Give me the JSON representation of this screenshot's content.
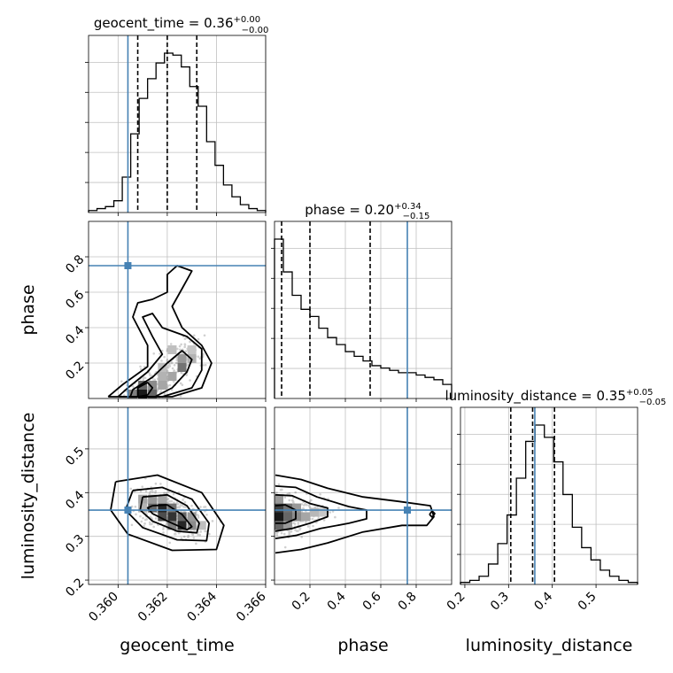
{
  "chart_data": {
    "type": "corner",
    "colors": {
      "truth": "#4682b4",
      "line": "#000000",
      "grid": "#c0c0c0",
      "density": "#000000"
    },
    "parameters": [
      {
        "name": "geocent_time",
        "label": "geocent_time",
        "title_main": "geocent_time = 0.36",
        "title_sup": "+0.00",
        "title_sub": "−0.00",
        "range": [
          0.3588,
          0.366
        ],
        "ticks": [
          0.36,
          0.362,
          0.364,
          0.366
        ],
        "tick_labels": [
          "0.360",
          "0.362",
          "0.364",
          "0.366"
        ],
        "truth": 0.3604,
        "quantiles": [
          0.3608,
          0.362,
          0.3632
        ],
        "hist": [
          1,
          2,
          3,
          6,
          18,
          40,
          58,
          68,
          76,
          81,
          80,
          74,
          64,
          54,
          36,
          24,
          14,
          8,
          4,
          2,
          1
        ]
      },
      {
        "name": "phase",
        "label": "phase",
        "title_main": "phase = 0.20",
        "title_sup": "+0.34",
        "title_sub": "−0.15",
        "range": [
          0.0,
          1.0
        ],
        "ticks": [
          0.2,
          0.4,
          0.6,
          0.8
        ],
        "tick_labels": [
          "0.2",
          "0.4",
          "0.6",
          "0.8"
        ],
        "truth": 0.75,
        "quantiles": [
          0.04,
          0.2,
          0.54
        ],
        "hist": [
          68,
          54,
          44,
          38,
          35,
          30,
          26,
          23,
          20,
          18,
          16,
          14,
          13,
          12,
          11,
          11,
          10,
          9,
          8,
          6
        ]
      },
      {
        "name": "luminosity_distance",
        "label": "luminosity_distance",
        "title_main": "luminosity_distance = 0.35",
        "title_sup": "+0.05",
        "title_sub": "−0.05",
        "range": [
          0.19,
          0.595
        ],
        "ticks": [
          0.2,
          0.3,
          0.4,
          0.5
        ],
        "tick_labels": [
          "0.2",
          "0.3",
          "0.4",
          "0.5"
        ],
        "truth": 0.36,
        "quantiles": [
          0.305,
          0.355,
          0.405
        ],
        "hist": [
          1,
          2,
          4,
          10,
          20,
          34,
          52,
          70,
          78,
          72,
          60,
          44,
          28,
          18,
          12,
          7,
          4,
          2,
          1
        ]
      }
    ],
    "panels": {
      "phase_vs_geocent_time": {
        "ytick_labels": [
          "0.2",
          "0.4",
          "0.6",
          "0.8"
        ],
        "yticks": [
          0.2,
          0.4,
          0.6,
          0.8
        ]
      },
      "luminosity_distance_vs_geocent_time": {
        "ytick_labels": [
          "0.2",
          "0.3",
          "0.4",
          "0.5"
        ],
        "yticks": [
          0.2,
          0.3,
          0.4,
          0.5
        ]
      }
    },
    "hist2d": {
      "phase_vs_geocent_time": [
        {
          "x": 0.361,
          "y": 0.025,
          "d": 0.9
        },
        {
          "x": 0.3614,
          "y": 0.025,
          "d": 0.6
        },
        {
          "x": 0.3606,
          "y": 0.025,
          "d": 0.5
        },
        {
          "x": 0.361,
          "y": 0.075,
          "d": 0.6
        },
        {
          "x": 0.3614,
          "y": 0.075,
          "d": 0.45
        },
        {
          "x": 0.3618,
          "y": 0.075,
          "d": 0.35
        },
        {
          "x": 0.3618,
          "y": 0.125,
          "d": 0.3
        },
        {
          "x": 0.3622,
          "y": 0.125,
          "d": 0.35
        },
        {
          "x": 0.3626,
          "y": 0.175,
          "d": 0.55
        },
        {
          "x": 0.3626,
          "y": 0.225,
          "d": 0.4
        },
        {
          "x": 0.363,
          "y": 0.225,
          "d": 0.3
        },
        {
          "x": 0.3622,
          "y": 0.275,
          "d": 0.25
        },
        {
          "x": 0.363,
          "y": 0.275,
          "d": 0.22
        },
        {
          "x": 0.3618,
          "y": 0.175,
          "d": 0.25
        }
      ],
      "luminosity_distance_vs_geocent_time": [
        {
          "x": 0.3614,
          "y": 0.365,
          "d": 0.6
        },
        {
          "x": 0.3618,
          "y": 0.365,
          "d": 0.85
        },
        {
          "x": 0.3622,
          "y": 0.365,
          "d": 0.55
        },
        {
          "x": 0.3618,
          "y": 0.345,
          "d": 0.7
        },
        {
          "x": 0.3622,
          "y": 0.345,
          "d": 0.8
        },
        {
          "x": 0.3626,
          "y": 0.345,
          "d": 0.6
        },
        {
          "x": 0.3626,
          "y": 0.325,
          "d": 0.85
        },
        {
          "x": 0.363,
          "y": 0.325,
          "d": 0.45
        },
        {
          "x": 0.361,
          "y": 0.385,
          "d": 0.35
        },
        {
          "x": 0.3614,
          "y": 0.385,
          "d": 0.4
        },
        {
          "x": 0.3618,
          "y": 0.385,
          "d": 0.35
        },
        {
          "x": 0.363,
          "y": 0.345,
          "d": 0.4
        },
        {
          "x": 0.361,
          "y": 0.365,
          "d": 0.3
        },
        {
          "x": 0.3622,
          "y": 0.325,
          "d": 0.5
        },
        {
          "x": 0.3634,
          "y": 0.325,
          "d": 0.25
        }
      ],
      "luminosity_distance_vs_phase": [
        {
          "x": 0.025,
          "y": 0.345,
          "d": 0.9
        },
        {
          "x": 0.025,
          "y": 0.365,
          "d": 0.75
        },
        {
          "x": 0.025,
          "y": 0.325,
          "d": 0.6
        },
        {
          "x": 0.075,
          "y": 0.345,
          "d": 0.6
        },
        {
          "x": 0.075,
          "y": 0.365,
          "d": 0.55
        },
        {
          "x": 0.125,
          "y": 0.345,
          "d": 0.45
        },
        {
          "x": 0.125,
          "y": 0.365,
          "d": 0.4
        },
        {
          "x": 0.175,
          "y": 0.345,
          "d": 0.35
        },
        {
          "x": 0.225,
          "y": 0.355,
          "d": 0.28
        },
        {
          "x": 0.275,
          "y": 0.355,
          "d": 0.22
        },
        {
          "x": 0.075,
          "y": 0.325,
          "d": 0.4
        },
        {
          "x": 0.025,
          "y": 0.385,
          "d": 0.4
        }
      ]
    },
    "contours": {
      "phase_vs_geocent_time": [
        [
          [
            0.3608,
            0.01
          ],
          [
            0.3612,
            0.02
          ],
          [
            0.3614,
            0.06
          ],
          [
            0.3612,
            0.09
          ],
          [
            0.3608,
            0.06
          ],
          [
            0.3608,
            0.01
          ]
        ],
        [
          [
            0.3605,
            0.01
          ],
          [
            0.3615,
            0.01
          ],
          [
            0.3622,
            0.06
          ],
          [
            0.3628,
            0.15
          ],
          [
            0.363,
            0.22
          ],
          [
            0.3626,
            0.27
          ],
          [
            0.362,
            0.2
          ],
          [
            0.3614,
            0.12
          ],
          [
            0.3606,
            0.05
          ],
          [
            0.3605,
            0.01
          ]
        ],
        [
          [
            0.36,
            0.01
          ],
          [
            0.3618,
            0.01
          ],
          [
            0.363,
            0.06
          ],
          [
            0.3634,
            0.16
          ],
          [
            0.3634,
            0.28
          ],
          [
            0.3628,
            0.35
          ],
          [
            0.3618,
            0.4
          ],
          [
            0.3614,
            0.48
          ],
          [
            0.361,
            0.46
          ],
          [
            0.3614,
            0.35
          ],
          [
            0.3618,
            0.25
          ],
          [
            0.3612,
            0.15
          ],
          [
            0.3604,
            0.06
          ],
          [
            0.36,
            0.01
          ]
        ],
        [
          [
            0.3596,
            0.01
          ],
          [
            0.3622,
            0.01
          ],
          [
            0.3634,
            0.06
          ],
          [
            0.3638,
            0.2
          ],
          [
            0.3634,
            0.3
          ],
          [
            0.3626,
            0.4
          ],
          [
            0.3622,
            0.52
          ],
          [
            0.3626,
            0.62
          ],
          [
            0.363,
            0.72
          ],
          [
            0.3624,
            0.75
          ],
          [
            0.362,
            0.7
          ],
          [
            0.362,
            0.6
          ],
          [
            0.3614,
            0.56
          ],
          [
            0.3608,
            0.54
          ],
          [
            0.3606,
            0.46
          ],
          [
            0.3612,
            0.3
          ],
          [
            0.3612,
            0.18
          ],
          [
            0.3602,
            0.08
          ],
          [
            0.3596,
            0.01
          ]
        ]
      ],
      "luminosity_distance_vs_geocent_time": [
        [
          [
            0.3614,
            0.37
          ],
          [
            0.362,
            0.372
          ],
          [
            0.3626,
            0.35
          ],
          [
            0.363,
            0.322
          ],
          [
            0.3628,
            0.315
          ],
          [
            0.362,
            0.335
          ],
          [
            0.3614,
            0.352
          ],
          [
            0.3612,
            0.365
          ],
          [
            0.3614,
            0.37
          ]
        ],
        [
          [
            0.361,
            0.39
          ],
          [
            0.362,
            0.395
          ],
          [
            0.3628,
            0.37
          ],
          [
            0.3633,
            0.33
          ],
          [
            0.3632,
            0.308
          ],
          [
            0.3624,
            0.312
          ],
          [
            0.3614,
            0.335
          ],
          [
            0.3609,
            0.36
          ],
          [
            0.361,
            0.39
          ]
        ],
        [
          [
            0.3606,
            0.405
          ],
          [
            0.3618,
            0.412
          ],
          [
            0.363,
            0.385
          ],
          [
            0.3637,
            0.33
          ],
          [
            0.3636,
            0.29
          ],
          [
            0.3624,
            0.292
          ],
          [
            0.361,
            0.32
          ],
          [
            0.3603,
            0.36
          ],
          [
            0.3606,
            0.405
          ]
        ],
        [
          [
            0.3599,
            0.425
          ],
          [
            0.3616,
            0.44
          ],
          [
            0.3634,
            0.4
          ],
          [
            0.3643,
            0.325
          ],
          [
            0.364,
            0.27
          ],
          [
            0.3622,
            0.268
          ],
          [
            0.3604,
            0.305
          ],
          [
            0.3597,
            0.36
          ],
          [
            0.3599,
            0.425
          ]
        ]
      ],
      "luminosity_distance_vs_phase": [
        [
          [
            0.005,
            0.37
          ],
          [
            0.06,
            0.372
          ],
          [
            0.12,
            0.36
          ],
          [
            0.12,
            0.34
          ],
          [
            0.06,
            0.33
          ],
          [
            0.005,
            0.33
          ]
        ],
        [
          [
            0.005,
            0.395
          ],
          [
            0.1,
            0.393
          ],
          [
            0.2,
            0.375
          ],
          [
            0.3,
            0.365
          ],
          [
            0.3,
            0.345
          ],
          [
            0.2,
            0.33
          ],
          [
            0.1,
            0.318
          ],
          [
            0.005,
            0.312
          ]
        ],
        [
          [
            0.005,
            0.415
          ],
          [
            0.12,
            0.412
          ],
          [
            0.24,
            0.39
          ],
          [
            0.42,
            0.368
          ],
          [
            0.52,
            0.36
          ],
          [
            0.52,
            0.34
          ],
          [
            0.42,
            0.33
          ],
          [
            0.26,
            0.318
          ],
          [
            0.12,
            0.302
          ],
          [
            0.005,
            0.295
          ]
        ],
        [
          [
            0.005,
            0.44
          ],
          [
            0.15,
            0.43
          ],
          [
            0.3,
            0.41
          ],
          [
            0.5,
            0.39
          ],
          [
            0.7,
            0.38
          ],
          [
            0.88,
            0.37
          ],
          [
            0.9,
            0.345
          ],
          [
            0.86,
            0.325
          ],
          [
            0.72,
            0.325
          ],
          [
            0.5,
            0.31
          ],
          [
            0.3,
            0.285
          ],
          [
            0.15,
            0.27
          ],
          [
            0.005,
            0.262
          ]
        ],
        [
          [
            0.875,
            0.35
          ],
          [
            0.89,
            0.358
          ],
          [
            0.905,
            0.352
          ],
          [
            0.89,
            0.344
          ],
          [
            0.875,
            0.35
          ]
        ]
      ]
    }
  }
}
